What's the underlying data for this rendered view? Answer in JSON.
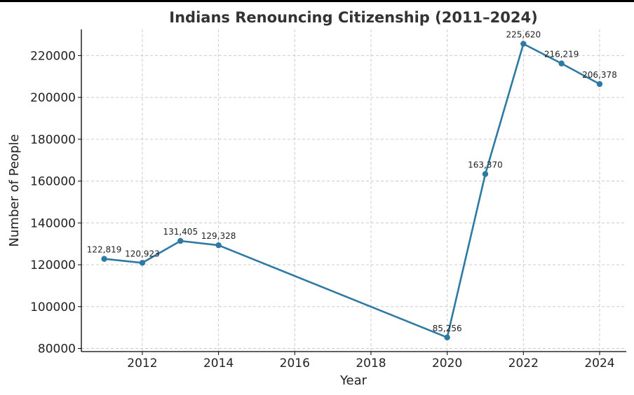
{
  "chart_data": {
    "type": "line",
    "title": "Indians Renouncing Citizenship (2011–2024)",
    "xlabel": "Year",
    "ylabel": "Number of People",
    "xlim": [
      2010.4,
      2024.7
    ],
    "ylim": [
      78500,
      232500
    ],
    "grid": true,
    "line_color": "#2e79a3",
    "xticks": [
      2012,
      2014,
      2016,
      2018,
      2020,
      2022,
      2024
    ],
    "yticks": [
      80000,
      100000,
      120000,
      140000,
      160000,
      180000,
      200000,
      220000
    ],
    "series": [
      {
        "x": [
          2011,
          2012,
          2013,
          2014,
          2020,
          2021,
          2022,
          2023,
          2024
        ],
        "y": [
          122819,
          120923,
          131405,
          129328,
          85256,
          163370,
          225620,
          216219,
          206378
        ],
        "labels": [
          "122,819",
          "120,923",
          "131,405",
          "129,328",
          "85,256",
          "163,370",
          "225,620",
          "216,219",
          "206,378"
        ]
      }
    ]
  }
}
